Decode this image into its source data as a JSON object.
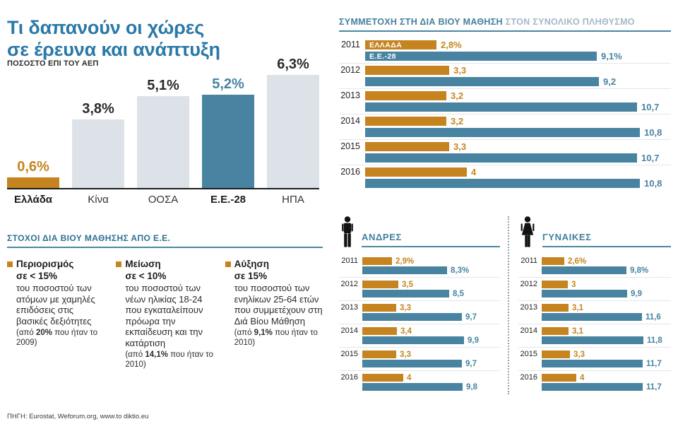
{
  "accent": {
    "orange": "#c68420",
    "teal": "#4884a1",
    "light_bar": "#dde2e8",
    "dark": "#2b2b2b",
    "title_blue": "#2a79a8"
  },
  "left": {
    "title_line1": "Τι δαπανούν οι χώρες",
    "title_line2": "σε έρευνα και ανάπτυξη",
    "subtitle": "ΠΟΣΟΣΤΟ ΕΠΙ ΤΟΥ ΑΕΠ",
    "goals_header": "ΣΤΟΧΟΙ ΔΙΑ ΒΙΟΥ ΜΑΘΗΣΗΣ ΑΠΟ Ε.Ε.",
    "goals": [
      {
        "title1": "Περιορισμός",
        "title2": "σε < 15%",
        "body": "του ποσοστού των ατόμων με χαμηλές επιδόσεις στις βασικές δεξιότητες",
        "note_pre": "(από ",
        "note_bold": "20%",
        "note_post": " που ήταν το 2009)"
      },
      {
        "title1": "Μείωση",
        "title2": "σε < 10%",
        "body": "του ποσοστού των νέων ηλικίας 18-24 που εγκαταλείπουν πρόωρα την εκπαίδευση και την κατάρτιση",
        "note_pre": "(από ",
        "note_bold": "14,1%",
        "note_post": " που ήταν το 2010)"
      },
      {
        "title1": "Αύξηση",
        "title2": "σε 15%",
        "body": "του ποσοστού των ενηλίκων 25-64 ετών που συμμετέχουν στη Διά Βίου Μάθηση",
        "note_pre": "(από ",
        "note_bold": "9,1%",
        "note_post": " που ήταν το 2010)"
      }
    ],
    "source": "ΠΗΓΗ: Eurostat, Weforum.org, www.to diktio.eu"
  },
  "right": {
    "header_bold": "ΣΥΜΜΕΤΟΧΗ ΣΤΗ ΔΙΑ ΒΙΟΥ ΜΑΘΗΣΗ",
    "header_light": " ΣΤΟΝ ΣΥΝΟΛΙΚΟ ΠΛΗΘΥΣΜΟ",
    "men_label": "ΑΝΔΡΕΣ",
    "women_label": "ΓΥΝΑΙΚΕΣ"
  },
  "chart_data": [
    {
      "id": "rd",
      "type": "bar",
      "title": "Τι δαπανούν οι χώρες σε έρευνα και ανάπτυξη",
      "subtitle": "ΠΟΣΟΣΤΟ ΕΠΙ ΤΟΥ ΑΕΠ",
      "categories": [
        "Ελλάδα",
        "Κίνα",
        "ΟΟΣΑ",
        "Ε.Ε.-28",
        "ΗΠΑ"
      ],
      "values": [
        0.6,
        3.8,
        5.1,
        5.2,
        6.3
      ],
      "labels": [
        "0,6%",
        "3,8%",
        "5,1%",
        "5,2%",
        "6,3%"
      ],
      "bar_colors": [
        "orange",
        "light",
        "light",
        "teal",
        "light"
      ],
      "label_colors": [
        "orange",
        "dark",
        "dark",
        "teal",
        "dark"
      ],
      "bold_categories": [
        true,
        false,
        false,
        true,
        false
      ],
      "xlabel": "",
      "ylabel": "ΠΟΣΟΣΤΟ ΕΠΙ ΤΟΥ ΑΕΠ",
      "ylim": [
        0,
        6.3
      ]
    },
    {
      "id": "total",
      "type": "bar",
      "orientation": "horizontal",
      "title": "ΣΥΜΜΕΤΟΧΗ ΣΤΗ ΔΙΑ ΒΙΟΥ ΜΑΘΗΣΗ ΣΤΟΝ ΣΥΝΟΛΙΚΟ ΠΛΗΘΥΣΜΟ",
      "categories": [
        "2011",
        "2012",
        "2013",
        "2014",
        "2015",
        "2016"
      ],
      "series": [
        {
          "name": "ΕΛΛΑΔΑ",
          "color": "orange",
          "values": [
            2.8,
            3.3,
            3.2,
            3.2,
            3.3,
            4
          ],
          "labels": [
            "2,8%",
            "3,3",
            "3,2",
            "3,2",
            "3,3",
            "4"
          ]
        },
        {
          "name": "Ε.Ε.-28",
          "color": "teal",
          "values": [
            9.1,
            9.2,
            10.7,
            10.8,
            10.7,
            10.8
          ],
          "labels": [
            "9,1%",
            "9,2",
            "10,7",
            "10,8",
            "10,7",
            "10,8"
          ]
        }
      ],
      "xlim": [
        0,
        11
      ]
    },
    {
      "id": "men",
      "type": "bar",
      "orientation": "horizontal",
      "title": "ΑΝΔΡΕΣ",
      "categories": [
        "2011",
        "2012",
        "2013",
        "2014",
        "2015",
        "2016"
      ],
      "series": [
        {
          "name": "ΕΛΛΑΔΑ",
          "color": "orange",
          "values": [
            2.9,
            3.5,
            3.3,
            3.4,
            3.3,
            4
          ],
          "labels": [
            "2,9%",
            "3,5",
            "3,3",
            "3,4",
            "3,3",
            "4"
          ]
        },
        {
          "name": "Ε.Ε.-28",
          "color": "teal",
          "values": [
            8.3,
            8.5,
            9.7,
            9.9,
            9.7,
            9.8
          ],
          "labels": [
            "8,3%",
            "8,5",
            "9,7",
            "9,9",
            "9,7",
            "9,8"
          ]
        }
      ],
      "xlim": [
        0,
        10
      ]
    },
    {
      "id": "women",
      "type": "bar",
      "orientation": "horizontal",
      "title": "ΓΥΝΑΙΚΕΣ",
      "categories": [
        "2011",
        "2012",
        "2013",
        "2014",
        "2015",
        "2016"
      ],
      "series": [
        {
          "name": "ΕΛΛΑΔΑ",
          "color": "orange",
          "values": [
            2.6,
            3,
            3.1,
            3.1,
            3.3,
            4
          ],
          "labels": [
            "2,6%",
            "3",
            "3,1",
            "3,1",
            "3,3",
            "4"
          ]
        },
        {
          "name": "Ε.Ε.-28",
          "color": "teal",
          "values": [
            9.8,
            9.9,
            11.6,
            11.8,
            11.7,
            11.7
          ],
          "labels": [
            "9,8%",
            "9,9",
            "11,6",
            "11,8",
            "11,7",
            "11,7"
          ]
        }
      ],
      "xlim": [
        0,
        12
      ]
    }
  ]
}
